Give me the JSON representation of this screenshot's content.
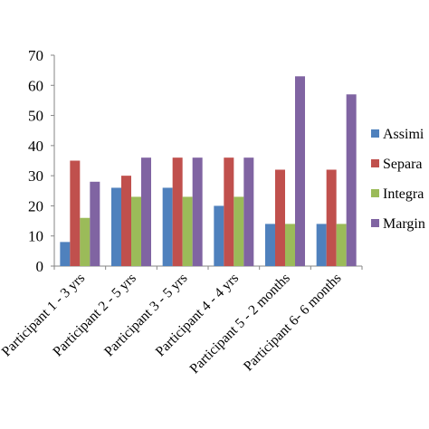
{
  "chart_data": {
    "type": "bar",
    "categories": [
      "Participant 1 - 3 yrs",
      "Participant 2 - 5 yrs",
      "Participant 3 - 5 yrs",
      "Participant 4 - 4 yrs",
      "Participant 5 - 2 months",
      "Participant 6- 6 months"
    ],
    "series": [
      {
        "name": "Assimi",
        "color": "#4f81bd",
        "values": [
          8,
          26,
          26,
          20,
          14,
          14
        ]
      },
      {
        "name": "Separa",
        "color": "#c0504d",
        "values": [
          35,
          30,
          36,
          36,
          32,
          32
        ]
      },
      {
        "name": "Integra",
        "color": "#9bbb59",
        "values": [
          16,
          23,
          23,
          23,
          14,
          14
        ]
      },
      {
        "name": "Margin",
        "color": "#8064a2",
        "values": [
          28,
          36,
          36,
          36,
          63,
          57
        ]
      }
    ],
    "yticks": [
      "0",
      "10",
      "20",
      "30",
      "40",
      "50",
      "60",
      "70"
    ],
    "ylim": [
      0,
      70
    ],
    "grid": false,
    "legend_position": "right",
    "title": "",
    "xlabel": "",
    "ylabel": ""
  }
}
